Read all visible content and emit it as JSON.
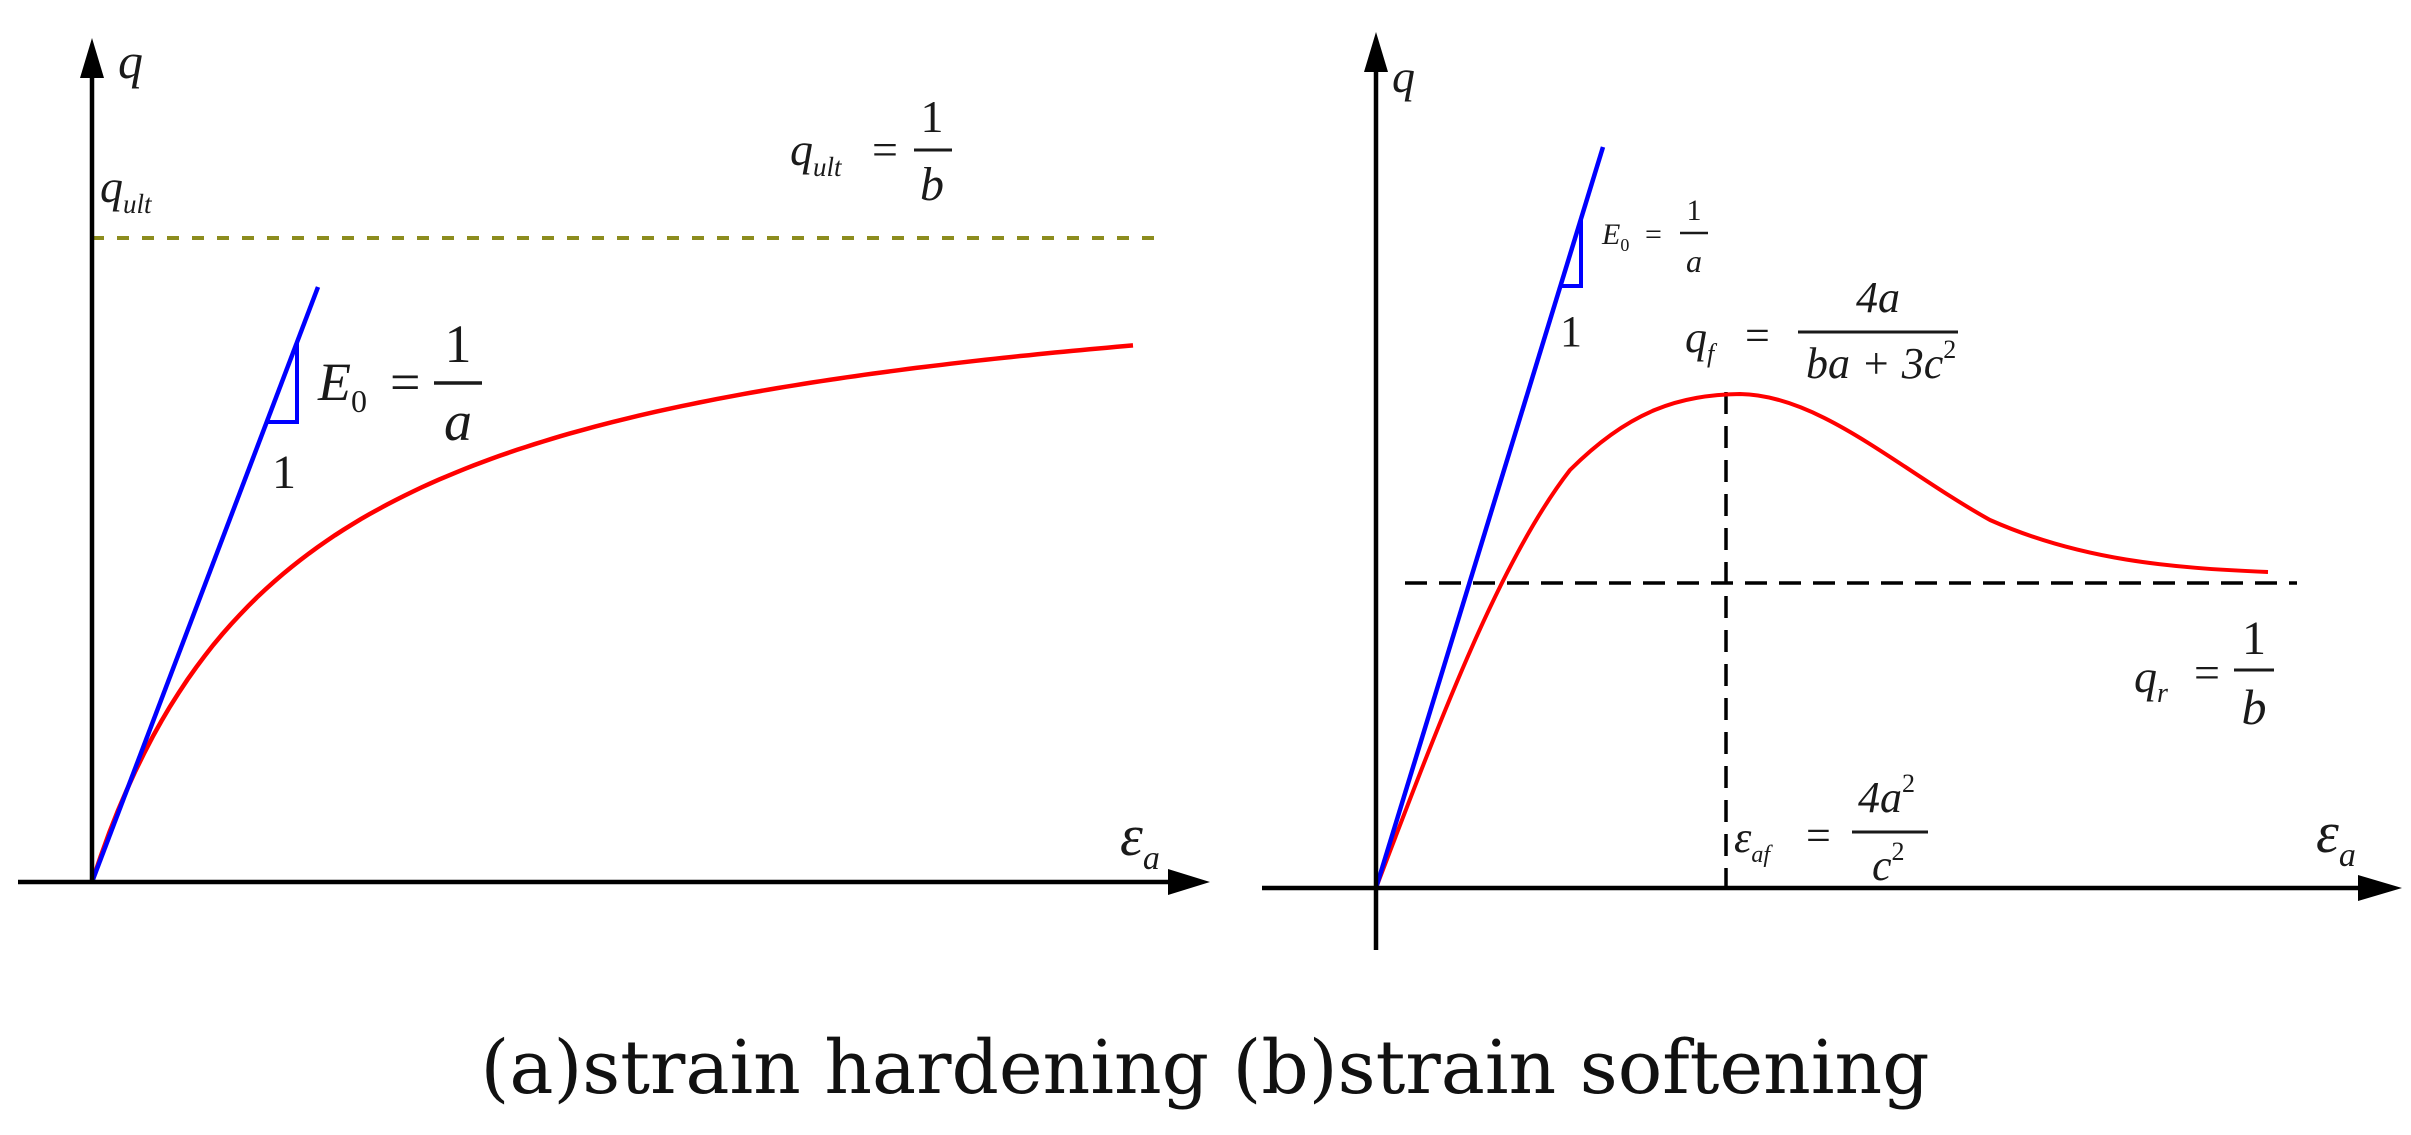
{
  "colors": {
    "axis": "#000000",
    "curve": "#ff0000",
    "tangent": "#0000ff",
    "asymptote_hardening": "#8c8c1e",
    "dashed_lines": "#000000",
    "text": "#1a1a1a"
  },
  "caption": "(a)strain hardening (b)strain softening",
  "panel_a": {
    "y_axis_label": "q",
    "x_axis_label": "ε",
    "x_axis_label_sub": "a",
    "q_ult_label": "q",
    "q_ult_label_sub": "ult",
    "q_ult_eq_lhs": "q",
    "q_ult_eq_lhs_sub": "ult",
    "q_ult_eq_equals": "=",
    "q_ult_eq_num": "1",
    "q_ult_eq_den": "b",
    "e0_lhs": "E",
    "e0_lhs_sub": "0",
    "e0_equals": "=",
    "e0_num": "1",
    "e0_den": "a",
    "slope_unit": "1"
  },
  "panel_b": {
    "y_axis_label": "q",
    "x_axis_label": "ε",
    "x_axis_label_sub": "a",
    "e0_lhs": "E",
    "e0_lhs_sub": "0",
    "e0_equals": "=",
    "e0_num": "1",
    "e0_den": "a",
    "slope_unit": "1",
    "qf_lhs": "q",
    "qf_lhs_sub": "f",
    "qf_equals": "=",
    "qf_num": "4a",
    "qf_den": "ba + 3c",
    "qf_den_sup": "2",
    "qr_lhs": "q",
    "qr_lhs_sub": "r",
    "qr_equals": "=",
    "qr_num": "1",
    "qr_den": "b",
    "eaf_lhs": "ε",
    "eaf_lhs_sub": "af",
    "eaf_equals": "=",
    "eaf_num": "4a",
    "eaf_num_sup": "2",
    "eaf_den": "c",
    "eaf_den_sup": "2"
  }
}
